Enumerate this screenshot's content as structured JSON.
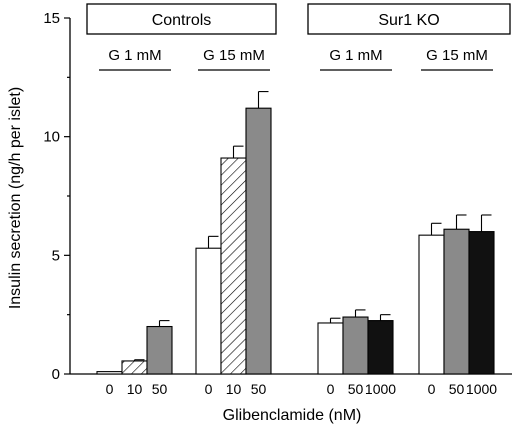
{
  "chart_data": {
    "type": "bar",
    "xlabel": "Glibenclamide (nM)",
    "ylabel": "Insulin secretion (ng/h per islet)",
    "ylim": [
      0,
      15
    ],
    "yticks": [
      0,
      5,
      10,
      15
    ],
    "grid": false,
    "panels": [
      {
        "label": "Controls",
        "groups": [
          {
            "label": "G 1 mM",
            "bars": [
              {
                "x": "0",
                "value": 0.1,
                "error": 0.0,
                "fill": "white"
              },
              {
                "x": "10",
                "value": 0.55,
                "error": 0.05,
                "fill": "hatch"
              },
              {
                "x": "50",
                "value": 2.0,
                "error": 0.25,
                "fill": "gray"
              }
            ]
          },
          {
            "label": "G 15 mM",
            "bars": [
              {
                "x": "0",
                "value": 5.3,
                "error": 0.5,
                "fill": "white"
              },
              {
                "x": "10",
                "value": 9.1,
                "error": 0.5,
                "fill": "hatch"
              },
              {
                "x": "50",
                "value": 11.2,
                "error": 0.7,
                "fill": "gray"
              }
            ]
          }
        ]
      },
      {
        "label": "Sur1 KO",
        "groups": [
          {
            "label": "G 1 mM",
            "bars": [
              {
                "x": "0",
                "value": 2.15,
                "error": 0.2,
                "fill": "white"
              },
              {
                "x": "50",
                "value": 2.4,
                "error": 0.3,
                "fill": "gray"
              },
              {
                "x": "1000",
                "value": 2.25,
                "error": 0.25,
                "fill": "black"
              }
            ]
          },
          {
            "label": "G 15 mM",
            "bars": [
              {
                "x": "0",
                "value": 5.85,
                "error": 0.5,
                "fill": "white"
              },
              {
                "x": "50",
                "value": 6.1,
                "error": 0.6,
                "fill": "gray"
              },
              {
                "x": "1000",
                "value": 6.0,
                "error": 0.7,
                "fill": "black"
              }
            ]
          }
        ]
      }
    ]
  },
  "colors": {
    "white": "#ffffff",
    "gray": "#8a8a8a",
    "black": "#111111",
    "stroke": "#000000"
  }
}
